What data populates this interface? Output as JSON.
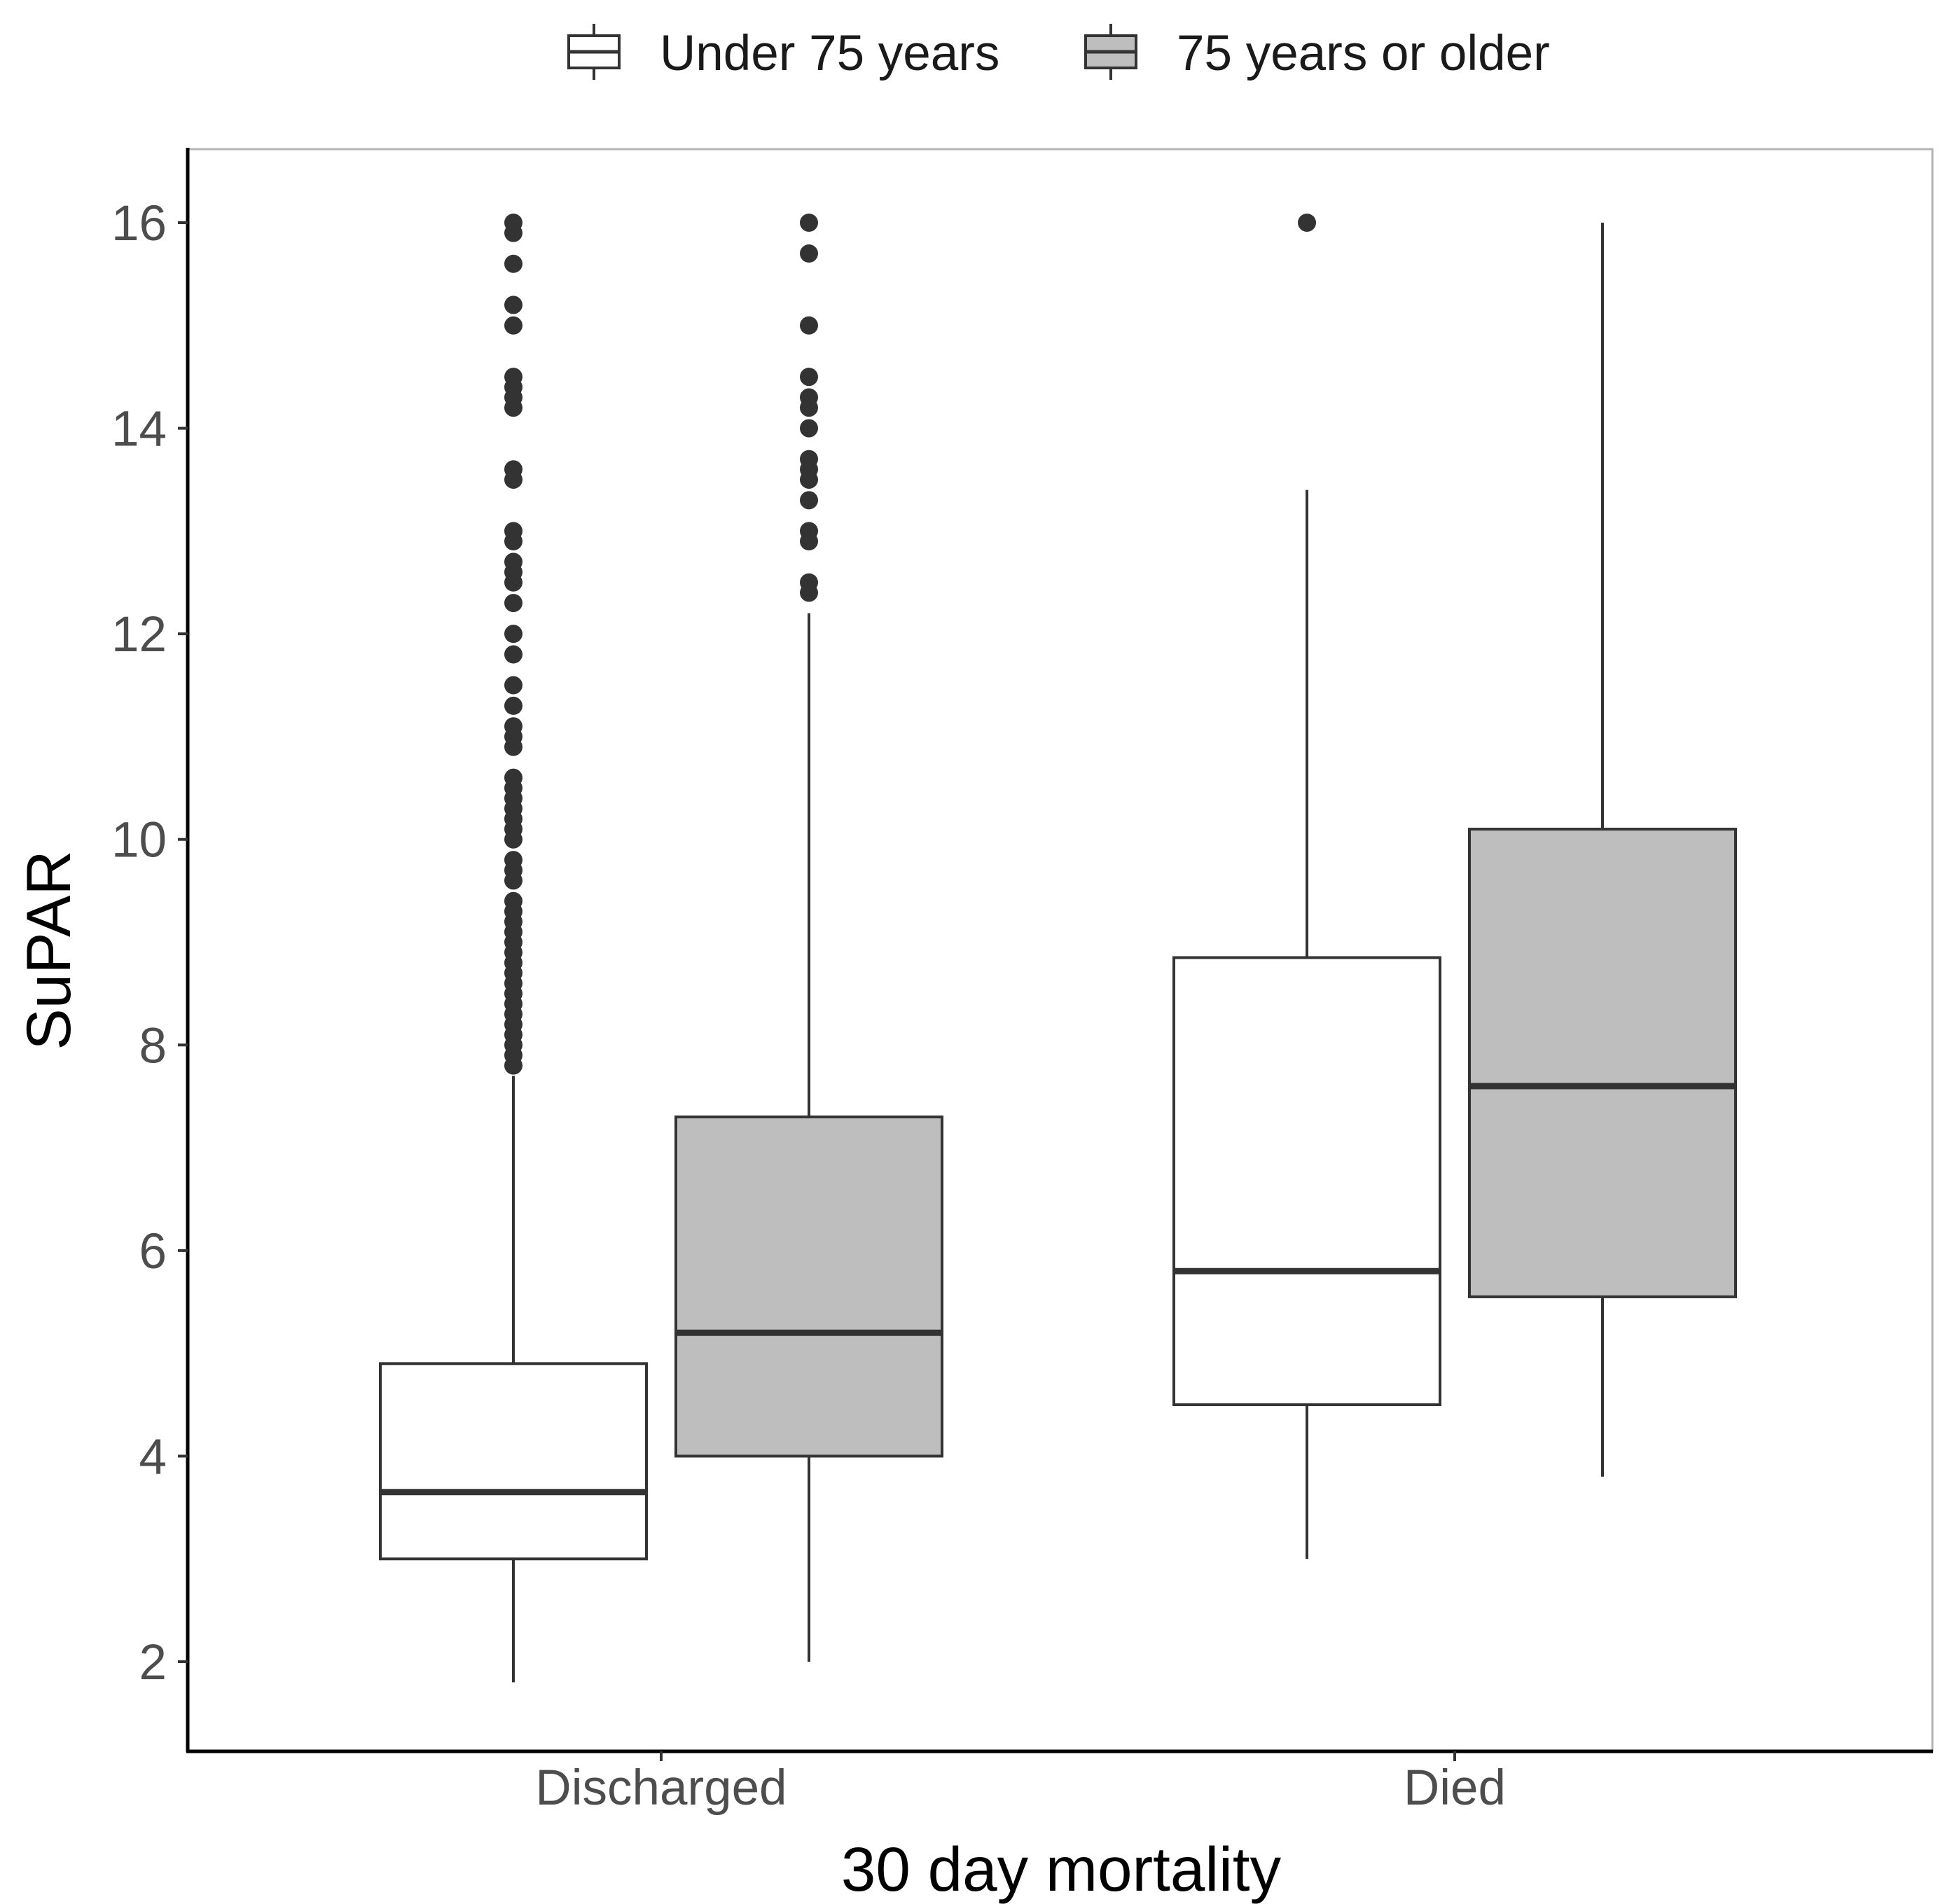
{
  "chart_data": {
    "type": "boxplot",
    "title": "",
    "xlabel": "30 day mortality",
    "ylabel": "SuPAR",
    "categories": [
      "Discharged",
      "Died"
    ],
    "y_ticks": [
      2,
      4,
      6,
      8,
      10,
      12,
      14,
      16
    ],
    "y_tick_labels": [
      "2",
      "4",
      "6",
      "8",
      "10",
      "12",
      "14",
      "16"
    ],
    "ylim": [
      1.1,
      16.7
    ],
    "legend": {
      "position": "top",
      "entries": [
        {
          "label": "Under 75 years",
          "fill": "#ffffff"
        },
        {
          "label": "75 years or older",
          "fill": "#bebebe"
        }
      ]
    },
    "series": [
      {
        "name": "Under 75 years",
        "fill": "#ffffff",
        "boxes": [
          {
            "category": "Discharged",
            "whisker_low": 1.8,
            "q1": 3.0,
            "median": 3.65,
            "q3": 4.9,
            "whisker_high": 7.7,
            "outliers": [
              7.8,
              7.9,
              8.0,
              8.1,
              8.2,
              8.3,
              8.4,
              8.5,
              8.6,
              8.7,
              8.8,
              8.9,
              9.0,
              9.1,
              9.2,
              9.3,
              9.4,
              9.6,
              9.7,
              9.8,
              10.0,
              10.1,
              10.2,
              10.3,
              10.4,
              10.5,
              10.6,
              10.9,
              11.0,
              11.1,
              11.3,
              11.5,
              11.8,
              12.0,
              12.3,
              12.5,
              12.6,
              12.7,
              12.9,
              13.0,
              13.5,
              13.6,
              14.2,
              14.3,
              14.4,
              14.5,
              15.0,
              15.2,
              15.6,
              15.9,
              16.0
            ]
          },
          {
            "category": "Died",
            "whisker_low": 3.0,
            "q1": 4.5,
            "median": 5.8,
            "q3": 8.85,
            "whisker_high": 13.4,
            "outliers": [
              16.0
            ]
          }
        ]
      },
      {
        "name": "75 years or older",
        "fill": "#bebebe",
        "boxes": [
          {
            "category": "Discharged",
            "whisker_low": 2.0,
            "q1": 4.0,
            "median": 5.2,
            "q3": 7.3,
            "whisker_high": 12.2,
            "outliers": [
              12.4,
              12.5,
              12.9,
              13.0,
              13.3,
              13.5,
              13.6,
              13.7,
              14.0,
              14.2,
              14.3,
              14.5,
              15.0,
              15.7,
              16.0
            ]
          },
          {
            "category": "Died",
            "whisker_low": 3.8,
            "q1": 5.55,
            "median": 7.6,
            "q3": 10.1,
            "whisker_high": 16.0,
            "outliers": []
          }
        ]
      }
    ]
  }
}
